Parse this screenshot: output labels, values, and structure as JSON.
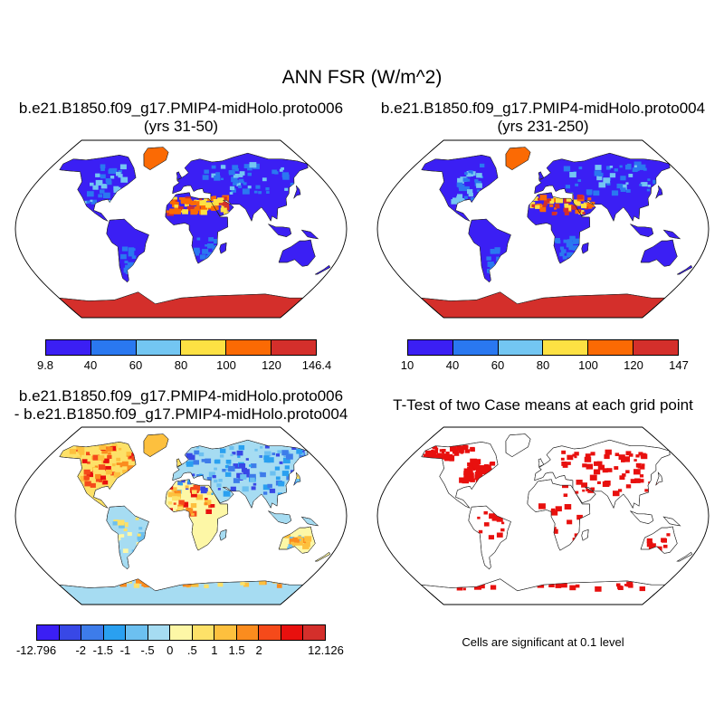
{
  "title": "ANN FSR (W/m^2)",
  "panels": [
    {
      "title_line1": "b.e21.B1850.f09_g17.PMIP4-midHolo.proto006",
      "title_line2": "(yrs 31-50)",
      "colorbar": {
        "colors": [
          "#3b1ff4",
          "#2a78f0",
          "#73c6f2",
          "#fde143",
          "#fb6a04",
          "#d42f2b"
        ],
        "labels": [
          "9.8",
          "40",
          "60",
          "80",
          "100",
          "120",
          "146.4"
        ]
      }
    },
    {
      "title_line1": "b.e21.B1850.f09_g17.PMIP4-midHolo.proto004",
      "title_line2": "(yrs 231-250)",
      "colorbar": {
        "colors": [
          "#3b1ff4",
          "#2a78f0",
          "#73c6f2",
          "#fde143",
          "#fb6a04",
          "#d42f2b"
        ],
        "labels": [
          "10",
          "40",
          "60",
          "80",
          "100",
          "120",
          "147"
        ]
      }
    },
    {
      "title_line1": "b.e21.B1850.f09_g17.PMIP4-midHolo.proto006",
      "title_line2": "- b.e21.B1850.f09_g17.PMIP4-midHolo.proto004",
      "colorbar": {
        "colors": [
          "#3b1ff4",
          "#3848e6",
          "#3d7cea",
          "#2aa0f0",
          "#6cc0f0",
          "#a6dcf2",
          "#fdf7a6",
          "#fde168",
          "#fdc03e",
          "#fb8c1e",
          "#f54a1a",
          "#e8100e",
          "#d42f2b"
        ],
        "labels": [
          "-12.796",
          "-2",
          "-1.5",
          "-1",
          "-.5",
          "0",
          ".5",
          "1",
          "1.5",
          "2",
          "12.126"
        ]
      }
    },
    {
      "title_line1": "T-Test of two Case means at each grid point",
      "note": "Cells are significant at 0.1 level"
    }
  ]
}
